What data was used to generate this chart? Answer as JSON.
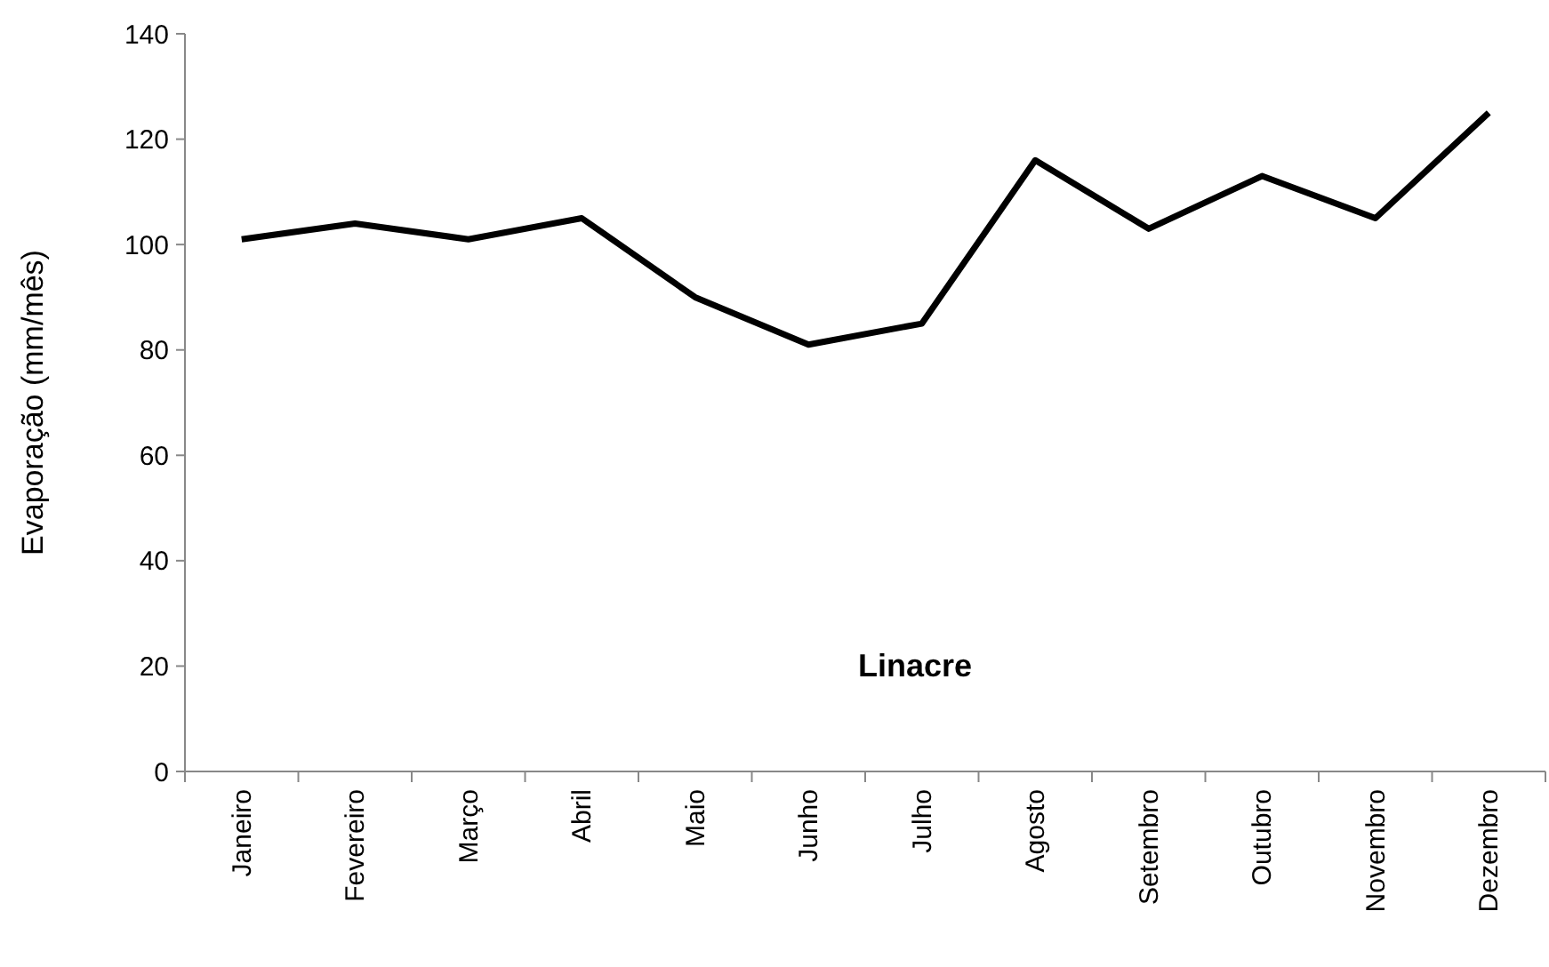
{
  "chart_data": {
    "type": "line",
    "ylabel": "Evaporação (mm/mês)",
    "annotations": [
      "Linacre"
    ],
    "categories": [
      "Janeiro",
      "Fevereiro",
      "Março",
      "Abril",
      "Maio",
      "Junho",
      "Julho",
      "Agosto",
      "Setembro",
      "Outubro",
      "Novembro",
      "Dezembro"
    ],
    "series": [
      {
        "color": "#000000",
        "values": [
          101,
          104,
          101,
          105,
          90,
          81,
          85,
          116,
          103,
          113,
          105,
          125
        ]
      }
    ],
    "ylim": [
      0,
      140
    ],
    "yticks": [
      0,
      20,
      40,
      60,
      80,
      100,
      120,
      140
    ],
    "grid": false,
    "marker": "none",
    "line_style": "solid"
  }
}
